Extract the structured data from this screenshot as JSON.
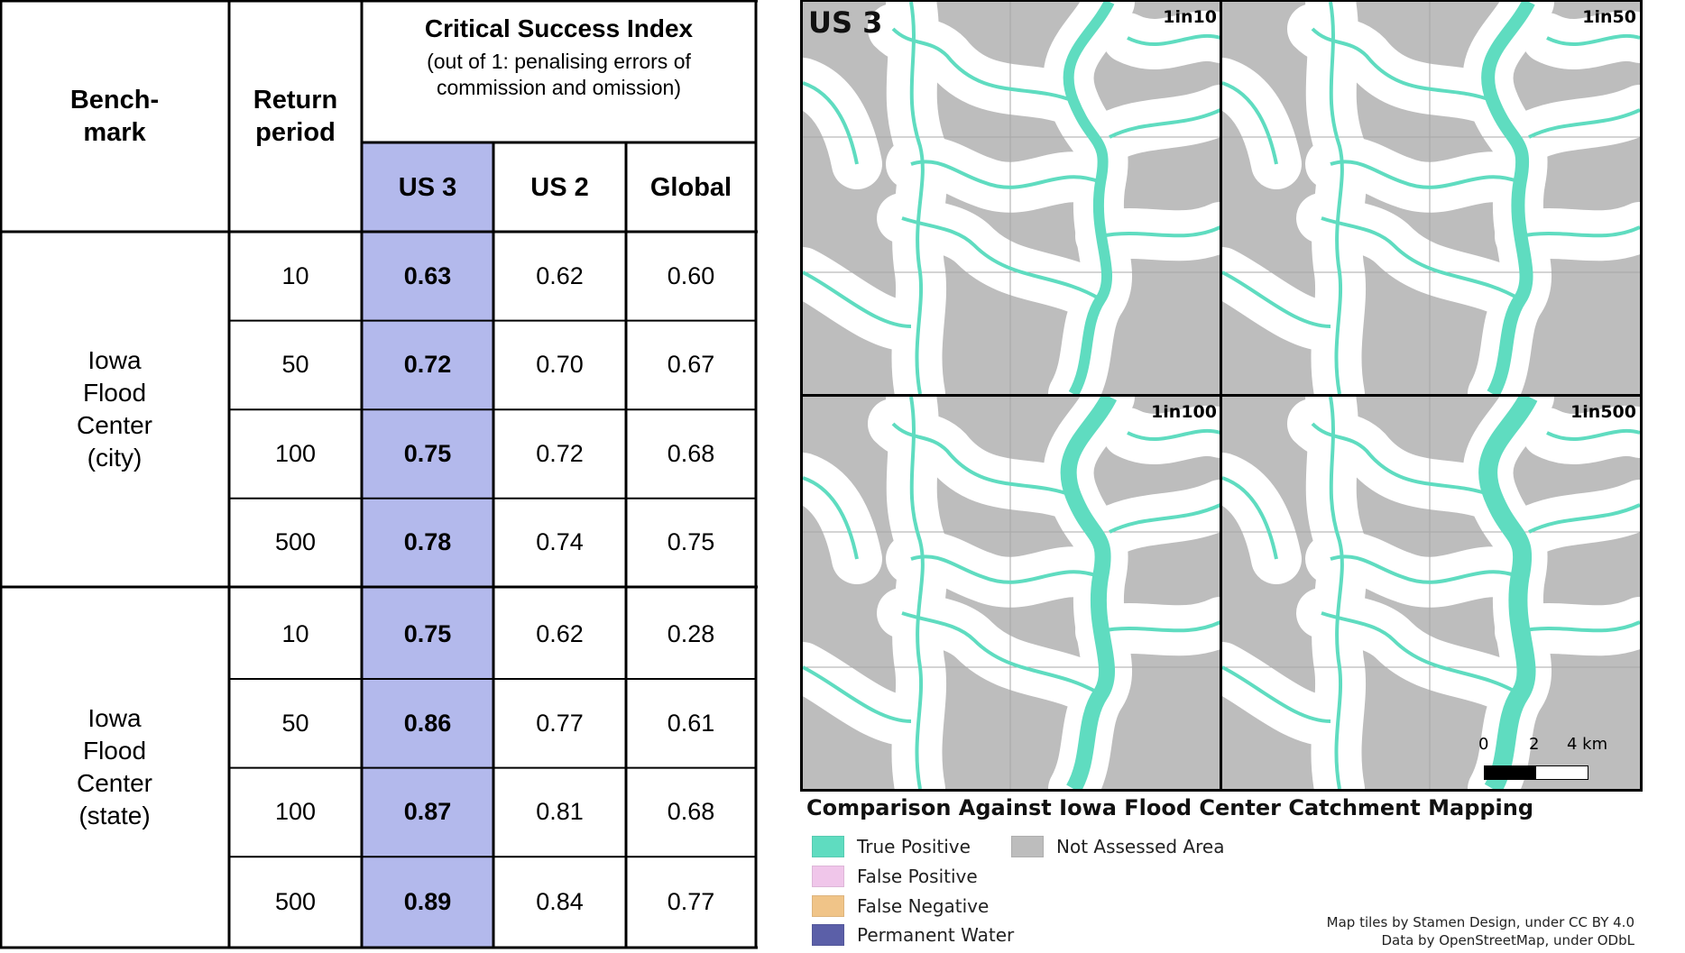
{
  "table": {
    "header": {
      "benchmark": "Bench-\nmark",
      "return_period": "Return\nperiod",
      "csi_title": "Critical Success Index",
      "csi_subtitle": "(out of 1: penalising errors of\ncommission and omission)",
      "col_us3": "US 3",
      "col_us2": "US 2",
      "col_global": "Global"
    },
    "groups": [
      {
        "benchmark": "Iowa\nFlood\nCenter\n(city)",
        "rows": [
          {
            "rp": "10",
            "us3": "0.63",
            "us2": "0.62",
            "global": "0.60"
          },
          {
            "rp": "50",
            "us3": "0.72",
            "us2": "0.70",
            "global": "0.67"
          },
          {
            "rp": "100",
            "us3": "0.75",
            "us2": "0.72",
            "global": "0.68"
          },
          {
            "rp": "500",
            "us3": "0.78",
            "us2": "0.74",
            "global": "0.75"
          }
        ]
      },
      {
        "benchmark": "Iowa\nFlood\nCenter\n(state)",
        "rows": [
          {
            "rp": "10",
            "us3": "0.75",
            "us2": "0.62",
            "global": "0.28"
          },
          {
            "rp": "50",
            "us3": "0.86",
            "us2": "0.77",
            "global": "0.61"
          },
          {
            "rp": "100",
            "us3": "0.87",
            "us2": "0.81",
            "global": "0.68"
          },
          {
            "rp": "500",
            "us3": "0.89",
            "us2": "0.84",
            "global": "0.77"
          }
        ]
      }
    ],
    "highlight_color": "#b3b9ec"
  },
  "map": {
    "title": "US 3",
    "panels": [
      "1in10",
      "1in50",
      "1in100",
      "1in500"
    ],
    "scale": {
      "tick0": "0",
      "tick1": "2",
      "tick2": "4 km"
    },
    "legend_title": "Comparison Against Iowa Flood Center Catchment Mapping",
    "legend": [
      {
        "label": "True Positive",
        "color": "#5fdcc0"
      },
      {
        "label": "False Positive",
        "color": "#f0c6ea"
      },
      {
        "label": "False Negative",
        "color": "#f0c488"
      },
      {
        "label": "Permanent Water",
        "color": "#5b5fa8"
      },
      {
        "label": "Not Assessed Area",
        "color": "#bdbdbd"
      }
    ],
    "credits": [
      "Map tiles by Stamen Design, under CC BY 4.0",
      "Data by OpenStreetMap, under ODbL"
    ],
    "colors": {
      "not_assessed": "#bdbdbd",
      "buffer": "#ffffff",
      "true_positive": "#5fdcc0"
    }
  }
}
